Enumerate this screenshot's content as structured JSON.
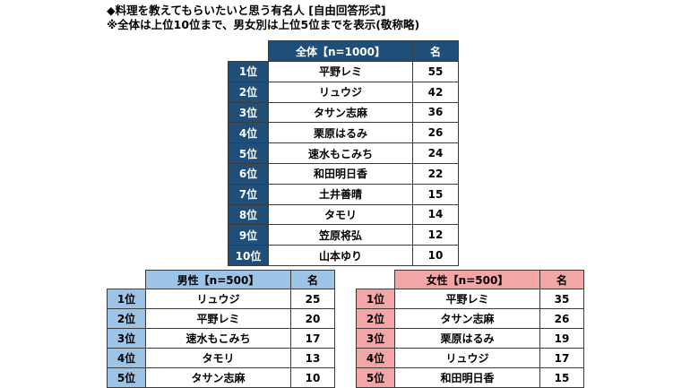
{
  "heading": {
    "line1": "◆料理を教えてもらいたいと思う有名人 [自由回答形式]",
    "line2": "※全体は上位10位まで、男女別は上位5位までを表示(敬称略)"
  },
  "overall": {
    "header_name": "全体【n=1000】",
    "header_count": "名",
    "header_color": "#1f4e79",
    "rows": [
      {
        "rank": "1位",
        "name": "平野レミ",
        "count": "55"
      },
      {
        "rank": "2位",
        "name": "リュウジ",
        "count": "42"
      },
      {
        "rank": "3位",
        "name": "タサン志麻",
        "count": "36"
      },
      {
        "rank": "4位",
        "name": "栗原はるみ",
        "count": "26"
      },
      {
        "rank": "5位",
        "name": "速水もこみち",
        "count": "24"
      },
      {
        "rank": "6位",
        "name": "和田明日香",
        "count": "22"
      },
      {
        "rank": "7位",
        "name": "土井善晴",
        "count": "15"
      },
      {
        "rank": "8位",
        "name": "タモリ",
        "count": "14"
      },
      {
        "rank": "9位",
        "name": "笠原将弘",
        "count": "12"
      },
      {
        "rank": "10位",
        "name": "山本ゆり",
        "count": "10"
      }
    ]
  },
  "male": {
    "header_name": "男性【n=500】",
    "header_count": "名",
    "header_color": "#9dc3e6",
    "rows": [
      {
        "rank": "1位",
        "name": "リュウジ",
        "count": "25"
      },
      {
        "rank": "2位",
        "name": "平野レミ",
        "count": "20"
      },
      {
        "rank": "3位",
        "name": "速水もこみち",
        "count": "17"
      },
      {
        "rank": "4位",
        "name": "タモリ",
        "count": "13"
      },
      {
        "rank": "5位",
        "name": "タサン志麻",
        "count": "10"
      }
    ]
  },
  "female": {
    "header_name": "女性【n=500】",
    "header_count": "名",
    "header_color": "#f4a6a6",
    "rows": [
      {
        "rank": "1位",
        "name": "平野レミ",
        "count": "35"
      },
      {
        "rank": "2位",
        "name": "タサン志麻",
        "count": "26"
      },
      {
        "rank": "3位",
        "name": "栗原はるみ",
        "count": "19"
      },
      {
        "rank": "4位",
        "name": "リュウジ",
        "count": "17"
      },
      {
        "rank": "5位",
        "name": "和田明日香",
        "count": "15"
      }
    ]
  }
}
